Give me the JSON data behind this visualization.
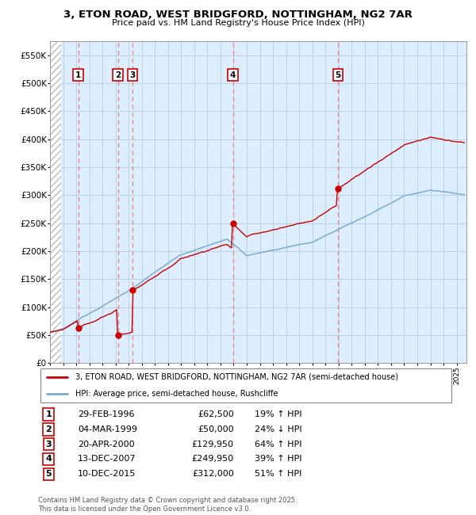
{
  "title_line1": "3, ETON ROAD, WEST BRIDGFORD, NOTTINGHAM, NG2 7AR",
  "title_line2": "Price paid vs. HM Land Registry's House Price Index (HPI)",
  "property_label": "3, ETON ROAD, WEST BRIDGFORD, NOTTINGHAM, NG2 7AR (semi-detached house)",
  "hpi_label": "HPI: Average price, semi-detached house, Rushcliffe",
  "footer": "Contains HM Land Registry data © Crown copyright and database right 2025.\nThis data is licensed under the Open Government Licence v3.0.",
  "sale_markers": [
    {
      "num": 1,
      "date": "29-FEB-1996",
      "price": 62500,
      "pct": "19%",
      "dir": "↑"
    },
    {
      "num": 2,
      "date": "04-MAR-1999",
      "price": 50000,
      "pct": "24%",
      "dir": "↓"
    },
    {
      "num": 3,
      "date": "20-APR-2000",
      "price": 129950,
      "pct": "64%",
      "dir": "↑"
    },
    {
      "num": 4,
      "date": "13-DEC-2007",
      "price": 249950,
      "pct": "39%",
      "dir": "↑"
    },
    {
      "num": 5,
      "date": "10-DEC-2015",
      "price": 312000,
      "pct": "51%",
      "dir": "↑"
    }
  ],
  "sale_years": [
    1996.16,
    1999.18,
    2000.3,
    2007.95,
    2015.95
  ],
  "ylim": [
    0,
    575000
  ],
  "yticks": [
    0,
    50000,
    100000,
    150000,
    200000,
    250000,
    300000,
    350000,
    400000,
    450000,
    500000,
    550000
  ],
  "ytick_labels": [
    "£0",
    "£50K",
    "£100K",
    "£150K",
    "£200K",
    "£250K",
    "£300K",
    "£350K",
    "£400K",
    "£450K",
    "£500K",
    "£550K"
  ],
  "xlim_start": 1994.0,
  "xlim_end": 2025.75,
  "property_line_color": "#cc0000",
  "hpi_line_color": "#7aaacc",
  "dashed_line_color": "#ee8888",
  "background_color": "#ddeeff",
  "grid_color": "#b8cce8",
  "marker_box_color": "#cc0000"
}
